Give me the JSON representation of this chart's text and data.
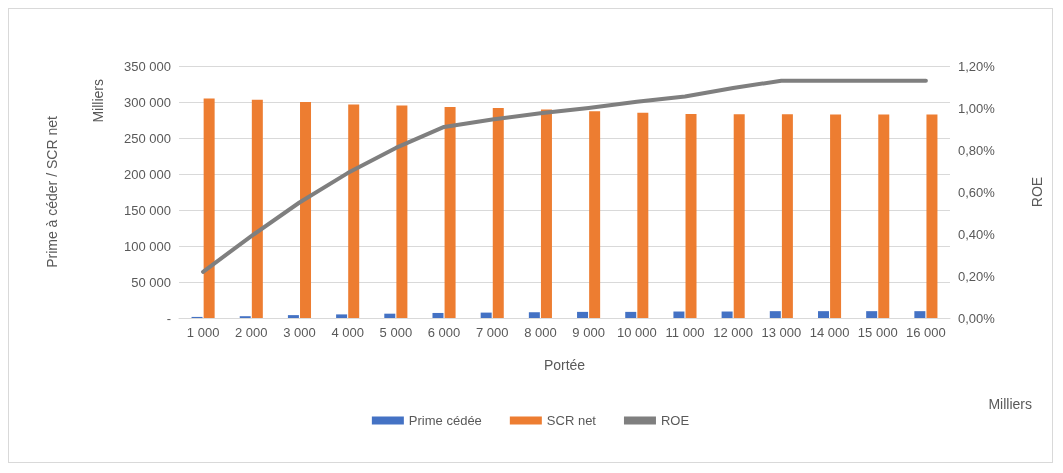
{
  "chart_data": {
    "type": "bar",
    "xlabel": "Portée",
    "ylabel": "Prime à céder / SCR net",
    "y2label": "ROE",
    "annotations": [
      "Milliers",
      "Milliers"
    ],
    "categories": [
      "1 000",
      "2 000",
      "3 000",
      "4 000",
      "5 000",
      "6 000",
      "7 000",
      "8 000",
      "9 000",
      "10 000",
      "11 000",
      "12 000",
      "13 000",
      "14 000",
      "15 000",
      "16 000"
    ],
    "series": [
      {
        "name": "Prime cédée",
        "color": "#4472c4",
        "values": [
          1500,
          2500,
          4000,
          5000,
          6000,
          7000,
          7500,
          8000,
          8500,
          8500,
          9000,
          9000,
          9500,
          9500,
          9500,
          9500
        ]
      },
      {
        "name": "SCR net",
        "color": "#ed7d31",
        "values": [
          305000,
          303000,
          300000,
          296500,
          295000,
          293000,
          291500,
          289500,
          287000,
          285000,
          283500,
          283000,
          283000,
          282500,
          282500,
          282500
        ]
      },
      {
        "name": "ROE",
        "type": "line",
        "axis": "y2",
        "color": "#7f7f7f",
        "values": [
          0.22,
          0.39,
          0.55,
          0.69,
          0.81,
          0.91,
          0.945,
          0.975,
          1.0,
          1.03,
          1.055,
          1.095,
          1.13,
          1.13,
          1.13,
          1.13
        ]
      }
    ],
    "ylim": [
      0,
      350000
    ],
    "yticks": [
      {
        "value": 0,
        "label": "-"
      },
      {
        "value": 50000,
        "label": "50 000"
      },
      {
        "value": 100000,
        "label": "100 000"
      },
      {
        "value": 150000,
        "label": "150 000"
      },
      {
        "value": 200000,
        "label": "200 000"
      },
      {
        "value": 250000,
        "label": "250 000"
      },
      {
        "value": 300000,
        "label": "300 000"
      },
      {
        "value": 350000,
        "label": "350 000"
      }
    ],
    "y2lim": [
      0,
      1.2
    ],
    "y2ticks": [
      {
        "value": 0,
        "label": "0,00%"
      },
      {
        "value": 0.2,
        "label": "0,20%"
      },
      {
        "value": 0.4,
        "label": "0,40%"
      },
      {
        "value": 0.6,
        "label": "0,60%"
      },
      {
        "value": 0.8,
        "label": "0,80%"
      },
      {
        "value": 1.0,
        "label": "1,00%"
      },
      {
        "value": 1.2,
        "label": "1,20%"
      }
    ],
    "grid": "y",
    "legend": "bottom",
    "marker": "none",
    "line_style": "solid"
  }
}
